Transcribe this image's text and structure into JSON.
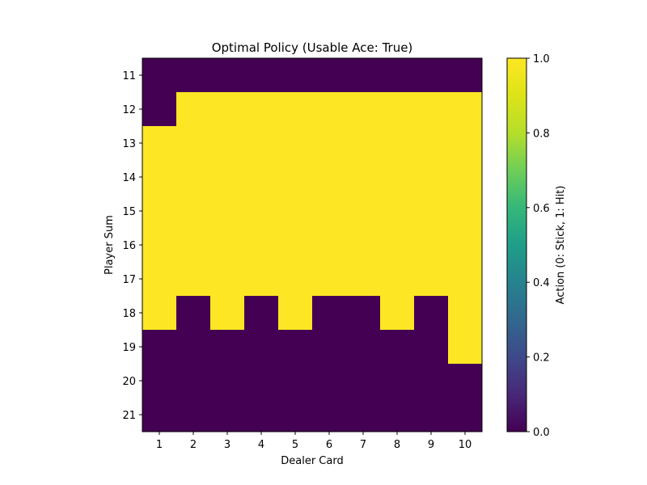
{
  "chart_data": {
    "type": "heatmap",
    "title": "Optimal Policy (Usable Ace: True)",
    "xlabel": "Dealer Card",
    "ylabel": "Player Sum",
    "x_categories": [
      "1",
      "2",
      "3",
      "4",
      "5",
      "6",
      "7",
      "8",
      "9",
      "10"
    ],
    "y_categories": [
      "11",
      "12",
      "13",
      "14",
      "15",
      "16",
      "17",
      "18",
      "19",
      "20",
      "21"
    ],
    "values": [
      [
        0,
        0,
        0,
        0,
        0,
        0,
        0,
        0,
        0,
        0
      ],
      [
        0,
        1,
        1,
        1,
        1,
        1,
        1,
        1,
        1,
        1
      ],
      [
        1,
        1,
        1,
        1,
        1,
        1,
        1,
        1,
        1,
        1
      ],
      [
        1,
        1,
        1,
        1,
        1,
        1,
        1,
        1,
        1,
        1
      ],
      [
        1,
        1,
        1,
        1,
        1,
        1,
        1,
        1,
        1,
        1
      ],
      [
        1,
        1,
        1,
        1,
        1,
        1,
        1,
        1,
        1,
        1
      ],
      [
        1,
        1,
        1,
        1,
        1,
        1,
        1,
        1,
        1,
        1
      ],
      [
        1,
        0,
        1,
        0,
        1,
        0,
        0,
        1,
        0,
        1
      ],
      [
        0,
        0,
        0,
        0,
        0,
        0,
        0,
        0,
        0,
        1
      ],
      [
        0,
        0,
        0,
        0,
        0,
        0,
        0,
        0,
        0,
        0
      ],
      [
        0,
        0,
        0,
        0,
        0,
        0,
        0,
        0,
        0,
        0
      ]
    ],
    "colormap": "viridis",
    "color_low": "#440154",
    "color_high": "#fde725",
    "colorbar": {
      "label": "Action (0: Stick, 1: Hit)",
      "range": [
        0,
        1
      ],
      "ticks": [
        "0.0",
        "0.2",
        "0.4",
        "0.6",
        "0.8",
        "1.0"
      ]
    },
    "grid": false,
    "legend": "colorbar-right"
  }
}
